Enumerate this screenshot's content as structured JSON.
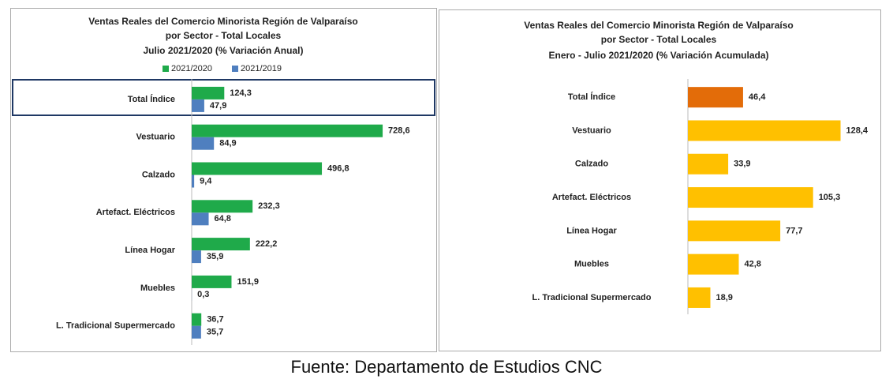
{
  "chart_data": [
    {
      "type": "bar",
      "orientation": "horizontal",
      "title": [
        "Ventas Reales del Comercio Minorista Región de Valparaíso",
        "por Sector - Total Locales",
        "Julio 2021/2020 (% Variación Anual)"
      ],
      "categories": [
        "Total Índice",
        "Vestuario",
        "Calzado",
        "Artefact. Eléctricos",
        "Línea Hogar",
        "Muebles",
        "L. Tradicional Supermercado"
      ],
      "series": [
        {
          "name": "2021/2020",
          "color": "#1faa4a",
          "values": [
            124.3,
            728.6,
            496.8,
            232.3,
            222.2,
            151.9,
            36.7
          ],
          "value_labels": [
            "124,3",
            "728,6",
            "496,8",
            "232,3",
            "222,2",
            "151,9",
            "36,7"
          ]
        },
        {
          "name": "2021/2019",
          "color": "#4f7fbf",
          "values": [
            47.9,
            84.9,
            9.4,
            64.8,
            35.9,
            0.3,
            35.7
          ],
          "value_labels": [
            "47,9",
            "84,9",
            "9,4",
            "64,8",
            "35,9",
            "0,3",
            "35,7"
          ]
        }
      ],
      "xlim": [
        0,
        900
      ],
      "legend": "top"
    },
    {
      "type": "bar",
      "orientation": "horizontal",
      "title": [
        "Ventas Reales del Comercio Minorista Región de Valparaíso",
        "por Sector  - Total Locales",
        "Enero - Julio 2021/2020 (% Variación Acumulada)"
      ],
      "categories": [
        "Total Índice",
        "Vestuario",
        "Calzado",
        "Artefact. Eléctricos",
        "Línea Hogar",
        "Muebles",
        "L. Tradicional Supermercado"
      ],
      "values": [
        46.4,
        128.4,
        33.9,
        105.3,
        77.7,
        42.8,
        18.9
      ],
      "value_labels": [
        "46,4",
        "128,4",
        "33,9",
        "105,3",
        "77,7",
        "42,8",
        "18,9"
      ],
      "colors": [
        "#e36c09",
        "#ffc000",
        "#ffc000",
        "#ffc000",
        "#ffc000",
        "#ffc000",
        "#ffc000"
      ],
      "xlim": [
        0,
        140
      ]
    }
  ],
  "source": "Fuente: Departamento de Estudios CNC"
}
